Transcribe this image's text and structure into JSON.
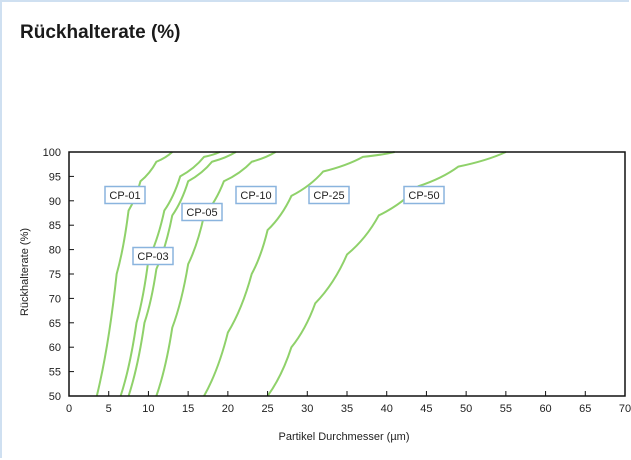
{
  "title": "Rückhalterate (%)",
  "colors": {
    "curve": "#8fd16a",
    "label_border": "#8ab4de",
    "axis": "#111111"
  },
  "chart_data": {
    "type": "line",
    "xlabel": "Partikel Durchmesser (µm)",
    "ylabel": "Rückhalterate (%)",
    "xlim": [
      0,
      70
    ],
    "ylim": [
      50,
      100
    ],
    "xticks": [
      "0",
      "5",
      "10",
      "15",
      "20",
      "25",
      "30",
      "35",
      "40",
      "45",
      "50",
      "55",
      "60",
      "65",
      "70"
    ],
    "yticks": [
      "50",
      "55",
      "60",
      "65",
      "70",
      "75",
      "80",
      "85",
      "90",
      "95",
      "100"
    ],
    "grid": false,
    "series": [
      {
        "name": "CP-01",
        "points": [
          [
            3.5,
            50
          ],
          [
            6,
            75
          ],
          [
            7.5,
            88
          ],
          [
            9,
            94
          ],
          [
            11,
            98
          ],
          [
            13,
            100
          ]
        ]
      },
      {
        "name": "CP-03",
        "points": [
          [
            6.5,
            50
          ],
          [
            8.5,
            65
          ],
          [
            10,
            78
          ],
          [
            12,
            88
          ],
          [
            14,
            95
          ],
          [
            17,
            99
          ],
          [
            19,
            100
          ]
        ]
      },
      {
        "name": "CP-05",
        "points": [
          [
            7.5,
            50
          ],
          [
            9.5,
            65
          ],
          [
            11,
            76
          ],
          [
            13,
            87
          ],
          [
            15,
            94
          ],
          [
            18,
            98
          ],
          [
            21,
            100
          ]
        ]
      },
      {
        "name": "CP-10",
        "points": [
          [
            11,
            50
          ],
          [
            13,
            64
          ],
          [
            15,
            77
          ],
          [
            17,
            87
          ],
          [
            19.5,
            94
          ],
          [
            23,
            98
          ],
          [
            26,
            100
          ]
        ]
      },
      {
        "name": "CP-25",
        "points": [
          [
            17,
            50
          ],
          [
            20,
            63
          ],
          [
            23,
            75
          ],
          [
            25,
            84
          ],
          [
            28,
            91
          ],
          [
            32,
            96
          ],
          [
            37,
            99
          ],
          [
            41,
            100
          ]
        ]
      },
      {
        "name": "CP-50",
        "points": [
          [
            25,
            50
          ],
          [
            28,
            60
          ],
          [
            31,
            69
          ],
          [
            35,
            79
          ],
          [
            39,
            87
          ],
          [
            44,
            93
          ],
          [
            49,
            97
          ],
          [
            55,
            100
          ]
        ]
      }
    ]
  }
}
